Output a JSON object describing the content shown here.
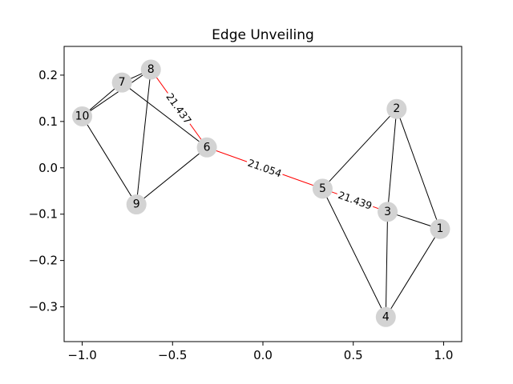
{
  "chart_data": {
    "type": "network",
    "title": "Edge Unveiling",
    "xlabel": "",
    "ylabel": "",
    "xlim": [
      -1.1,
      1.1
    ],
    "ylim": [
      -0.375,
      0.262
    ],
    "x_ticks": [
      -1.0,
      -0.5,
      0.0,
      0.5,
      1.0
    ],
    "x_tick_labels": [
      "−1.0",
      "−0.5",
      "0.0",
      "0.5",
      "1.0"
    ],
    "y_ticks": [
      0.2,
      0.1,
      0.0,
      -0.1,
      -0.2,
      -0.3
    ],
    "y_tick_labels": [
      "0.2",
      "0.1",
      "0.0",
      "−0.1",
      "−0.2",
      "−0.3"
    ],
    "grid": false,
    "node_color": "#d3d3d3",
    "edge_color": "#000000",
    "highlight_color": "#ff0000",
    "nodes": [
      {
        "id": "1",
        "x": 0.98,
        "y": -0.132
      },
      {
        "id": "2",
        "x": 0.74,
        "y": 0.127
      },
      {
        "id": "3",
        "x": 0.69,
        "y": -0.095
      },
      {
        "id": "4",
        "x": 0.68,
        "y": -0.322
      },
      {
        "id": "5",
        "x": 0.33,
        "y": -0.045
      },
      {
        "id": "6",
        "x": -0.31,
        "y": 0.044
      },
      {
        "id": "7",
        "x": -0.78,
        "y": 0.184
      },
      {
        "id": "8",
        "x": -0.62,
        "y": 0.212
      },
      {
        "id": "9",
        "x": -0.7,
        "y": -0.079
      },
      {
        "id": "10",
        "x": -1.0,
        "y": 0.111
      }
    ],
    "edges": [
      {
        "source": "1",
        "target": "2",
        "highlight": false
      },
      {
        "source": "1",
        "target": "3",
        "highlight": false
      },
      {
        "source": "1",
        "target": "4",
        "highlight": false
      },
      {
        "source": "2",
        "target": "3",
        "highlight": false
      },
      {
        "source": "2",
        "target": "5",
        "highlight": false
      },
      {
        "source": "3",
        "target": "4",
        "highlight": false
      },
      {
        "source": "4",
        "target": "5",
        "highlight": false
      },
      {
        "source": "7",
        "target": "8",
        "highlight": false
      },
      {
        "source": "7",
        "target": "10",
        "highlight": false
      },
      {
        "source": "8",
        "target": "10",
        "highlight": false
      },
      {
        "source": "8",
        "target": "9",
        "highlight": false
      },
      {
        "source": "9",
        "target": "10",
        "highlight": false
      },
      {
        "source": "6",
        "target": "9",
        "highlight": false
      },
      {
        "source": "6",
        "target": "7",
        "highlight": false
      },
      {
        "source": "8",
        "target": "6",
        "highlight": true,
        "label": "21.437"
      },
      {
        "source": "6",
        "target": "5",
        "highlight": true,
        "label": "21.054"
      },
      {
        "source": "5",
        "target": "3",
        "highlight": true,
        "label": "21.439"
      }
    ]
  }
}
